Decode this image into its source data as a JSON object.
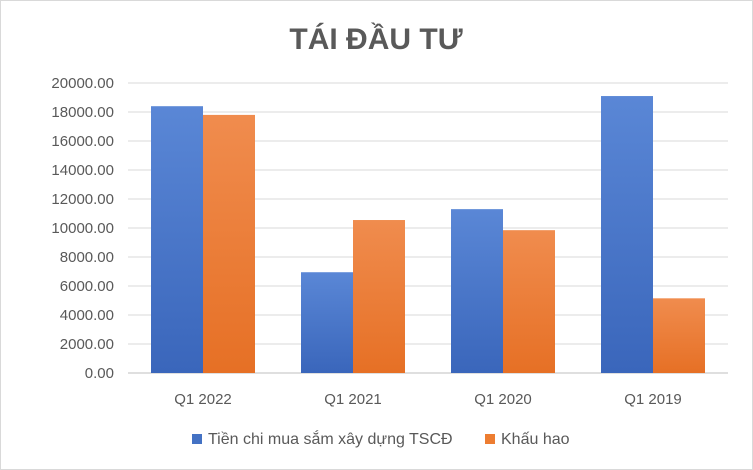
{
  "chart_data": {
    "type": "bar",
    "title": "TÁI ĐẦU TƯ",
    "xlabel": "",
    "ylabel": "",
    "categories": [
      "Q1 2022",
      "Q1 2021",
      "Q1 2020",
      "Q1 2019"
    ],
    "ylim": [
      0,
      20000
    ],
    "yticks": [
      "0.00",
      "2000.00",
      "4000.00",
      "6000.00",
      "8000.00",
      "10000.00",
      "12000.00",
      "14000.00",
      "16000.00",
      "18000.00",
      "20000.00"
    ],
    "grid": true,
    "legend_position": "bottom",
    "series": [
      {
        "name": "Tiền chi mua sắm xây dựng TSCĐ",
        "color": "#4472c4",
        "values": [
          18400,
          6950,
          11300,
          19100
        ]
      },
      {
        "name": "Khấu hao",
        "color": "#ed7d31",
        "values": [
          17800,
          10550,
          9850,
          5150
        ]
      }
    ]
  }
}
